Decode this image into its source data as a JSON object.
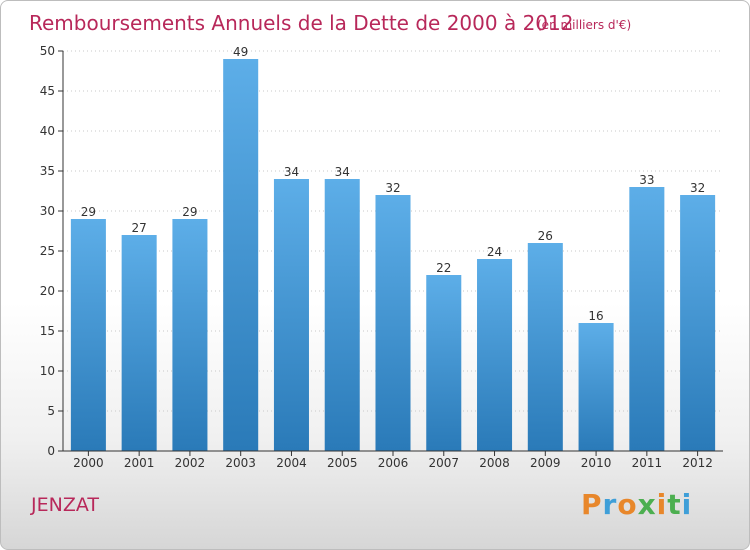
{
  "chart_data": {
    "type": "bar",
    "title": "Remboursements Annuels de la Dette de 2000 à 2012",
    "subtitle": "(en milliers d'€)",
    "categories": [
      "2000",
      "2001",
      "2002",
      "2003",
      "2004",
      "2005",
      "2006",
      "2007",
      "2008",
      "2009",
      "2010",
      "2011",
      "2012"
    ],
    "values": [
      29,
      27,
      29,
      49,
      34,
      34,
      32,
      22,
      24,
      26,
      16,
      33,
      32
    ],
    "ylim": [
      0,
      50
    ],
    "yticks": [
      0,
      5,
      10,
      15,
      20,
      25,
      30,
      35,
      40,
      45,
      50
    ],
    "grid": true,
    "bar_color_top": "#5daee8",
    "bar_color_bottom": "#2a7ab8"
  },
  "footer": {
    "commune": "JENZAT",
    "logo_text": "Proxiti",
    "logo_colors": [
      "#e8872b",
      "#3f9fd8",
      "#e8872b",
      "#4caf50",
      "#e8872b",
      "#4caf50",
      "#3f9fd8"
    ]
  }
}
